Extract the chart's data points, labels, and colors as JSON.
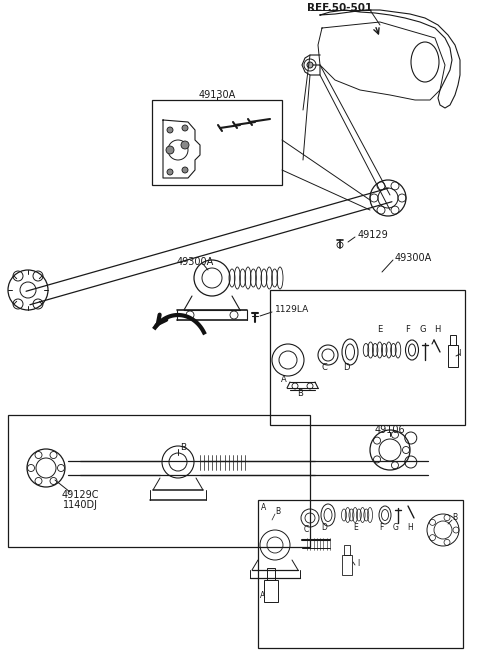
{
  "bg_color": "#ffffff",
  "line_color": "#1a1a1a",
  "labels": {
    "ref": "REF.50-501",
    "part1": "49130A",
    "part2": "49300A",
    "part2b": "49300A",
    "part4": "49129",
    "part5": "1129LA",
    "part6a": "49129C",
    "part6b": "1140DJ",
    "part7": "49106"
  },
  "letters_upper": [
    "F",
    "G",
    "H",
    "A",
    "B",
    "C",
    "D",
    "E",
    "I"
  ],
  "letters_lower": [
    "A",
    "B",
    "C",
    "D",
    "E",
    "F",
    "G",
    "H",
    "B",
    "I"
  ]
}
